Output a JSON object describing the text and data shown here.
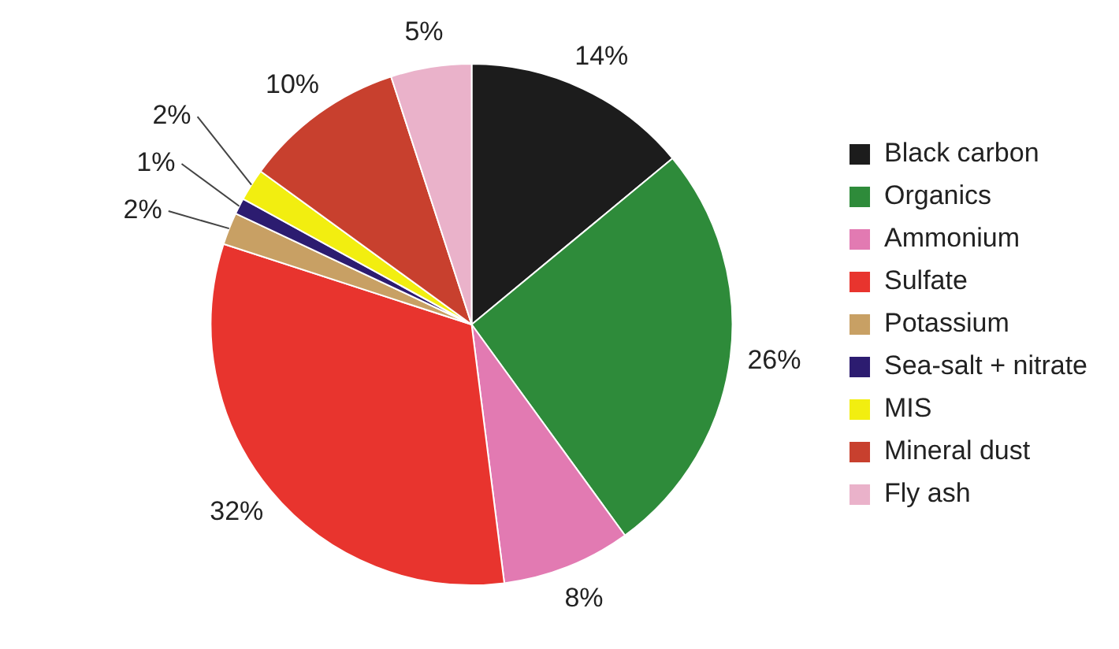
{
  "chart_data": {
    "type": "pie",
    "categories": [
      "Black carbon",
      "Organics",
      "Ammonium",
      "Sulfate",
      "Potassium",
      "Sea-salt + nitrate",
      "MIS",
      "Mineral dust",
      "Fly ash"
    ],
    "values": [
      14,
      26,
      8,
      32,
      2,
      1,
      2,
      10,
      5
    ],
    "colors": [
      "#1c1c1c",
      "#2e8b3a",
      "#e27ab2",
      "#e8342e",
      "#c8a064",
      "#2c1c70",
      "#f2ee10",
      "#c8402e",
      "#eab2ca"
    ],
    "value_labels": [
      "14%",
      "26%",
      "8%",
      "32%",
      "2%",
      "1%",
      "2%",
      "10%",
      "5%"
    ],
    "legend": "right"
  }
}
